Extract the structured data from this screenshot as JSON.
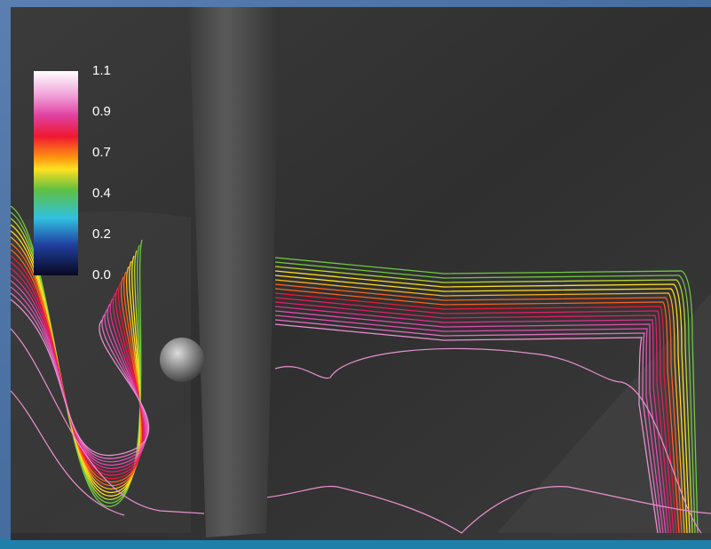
{
  "colorbar": {
    "ticks": [
      "1.1",
      "0.9",
      "0.7",
      "0.4",
      "0.2",
      "0.0"
    ]
  }
}
